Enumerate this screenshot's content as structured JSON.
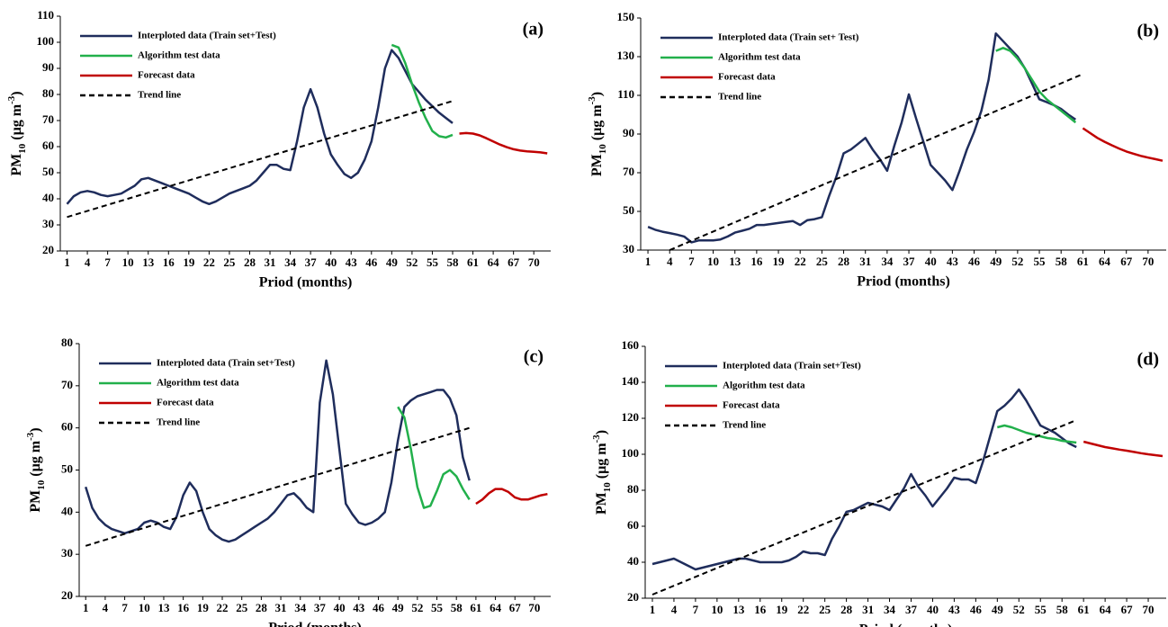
{
  "chart_data": [
    {
      "type": "line",
      "panel_label": "(a)",
      "ylabel": [
        "PM",
        "10",
        " (µg m",
        "-3",
        ")"
      ],
      "xlabel": "Priod (months)",
      "xlim": [
        0,
        72.5
      ],
      "ylim": [
        20,
        110
      ],
      "xticks": [
        1,
        4,
        7,
        10,
        13,
        16,
        19,
        22,
        25,
        28,
        31,
        34,
        37,
        40,
        43,
        46,
        49,
        52,
        55,
        58,
        61,
        64,
        67,
        70
      ],
      "yticks": [
        20,
        30,
        40,
        50,
        60,
        70,
        80,
        90,
        100,
        110
      ],
      "series": [
        {
          "name": "Interploted data (Train set+Test)",
          "color": "#1f2d5c",
          "style": "solid",
          "x": [
            1,
            2,
            3,
            4,
            5,
            6,
            7,
            8,
            9,
            10,
            11,
            12,
            13,
            14,
            15,
            16,
            17,
            18,
            19,
            20,
            21,
            22,
            23,
            24,
            25,
            26,
            27,
            28,
            29,
            30,
            31,
            32,
            33,
            34,
            35,
            36,
            37,
            38,
            39,
            40,
            41,
            42,
            43,
            44,
            45,
            46,
            47,
            48,
            49,
            50,
            51,
            52,
            53,
            54,
            55,
            56,
            57,
            58
          ],
          "values": [
            38,
            41,
            42.5,
            43,
            42.5,
            41.5,
            41,
            41.5,
            42,
            43.5,
            45,
            47.5,
            48,
            47,
            46,
            45,
            44,
            43,
            42,
            40.5,
            39,
            38,
            39,
            40.5,
            42,
            43,
            44,
            45,
            47,
            50,
            53,
            53,
            51.5,
            51,
            62,
            75,
            82,
            75,
            65,
            57,
            53,
            49.5,
            48,
            50,
            55,
            62,
            75,
            90,
            97,
            94,
            89,
            84,
            81,
            78,
            75.5,
            73,
            71,
            69
          ]
        },
        {
          "name": "Algorithm test data",
          "color": "#22b04b",
          "style": "solid",
          "x": [
            49,
            50,
            51,
            52,
            53,
            54,
            55,
            56,
            57,
            58
          ],
          "values": [
            99,
            98,
            92,
            84,
            77,
            71,
            66,
            64,
            63.5,
            64.5
          ]
        },
        {
          "name": "Forecast data",
          "color": "#c00000",
          "style": "solid",
          "x": [
            59,
            60,
            61,
            62,
            63,
            64,
            65,
            66,
            67,
            68,
            69,
            70,
            71,
            72
          ],
          "values": [
            65,
            65.2,
            65,
            64.3,
            63.2,
            62,
            60.8,
            59.8,
            59,
            58.5,
            58.2,
            58,
            57.8,
            57.4
          ]
        },
        {
          "name": "Trend line",
          "color": "#000000",
          "style": "dashed",
          "x": [
            1,
            58
          ],
          "values": [
            33,
            77.5
          ]
        }
      ]
    },
    {
      "type": "line",
      "panel_label": "(b)",
      "ylabel": [
        "PM",
        "10",
        " (µg m",
        "-3",
        ")"
      ],
      "xlabel": "Priod (months)",
      "xlim": [
        0,
        72.5
      ],
      "ylim": [
        30,
        150
      ],
      "xticks": [
        1,
        4,
        7,
        10,
        13,
        16,
        19,
        22,
        25,
        28,
        31,
        34,
        37,
        40,
        43,
        46,
        49,
        52,
        55,
        58,
        61,
        64,
        67,
        70
      ],
      "yticks": [
        30,
        50,
        70,
        90,
        110,
        130,
        150
      ],
      "series": [
        {
          "name": "Interploted data (Train set+ Test)",
          "color": "#1f2d5c",
          "style": "solid",
          "x": [
            1,
            2,
            3,
            4,
            5,
            6,
            7,
            8,
            9,
            10,
            11,
            12,
            13,
            14,
            15,
            16,
            17,
            18,
            19,
            20,
            21,
            22,
            23,
            24,
            25,
            26,
            27,
            28,
            29,
            30,
            31,
            32,
            33,
            34,
            35,
            36,
            37,
            38,
            39,
            40,
            41,
            42,
            43,
            44,
            45,
            46,
            47,
            48,
            49,
            50,
            51,
            52,
            53,
            54,
            55,
            56,
            57,
            58,
            59,
            60
          ],
          "values": [
            42,
            40.5,
            39.5,
            38.8,
            38,
            37,
            34,
            35,
            35,
            35,
            35.5,
            37,
            39,
            40,
            41,
            43,
            43,
            43.5,
            44,
            44.5,
            45,
            43,
            45.5,
            46,
            47,
            58,
            68,
            80,
            82,
            85,
            88,
            82,
            77,
            71,
            84,
            96,
            110.5,
            98,
            86,
            74,
            70,
            66,
            61,
            71,
            82,
            91,
            102,
            118,
            142,
            138,
            134,
            130,
            124,
            116,
            108,
            106.5,
            105,
            103,
            100,
            97.5
          ]
        },
        {
          "name": "Algorithm test data",
          "color": "#22b04b",
          "style": "solid",
          "x": [
            49,
            50,
            51,
            52,
            53,
            54,
            55,
            56,
            57,
            58,
            59,
            60
          ],
          "values": [
            133,
            134.5,
            133,
            129,
            124,
            118,
            112,
            108,
            105,
            102,
            99,
            96
          ]
        },
        {
          "name": "Forecast data",
          "color": "#c00000",
          "style": "solid",
          "x": [
            61,
            62,
            63,
            64,
            65,
            66,
            67,
            68,
            69,
            70,
            71,
            72
          ],
          "values": [
            93,
            90.5,
            88,
            86,
            84.2,
            82.5,
            81,
            79.8,
            78.7,
            77.8,
            77,
            76.2
          ]
        },
        {
          "name": "Trend line",
          "color": "#000000",
          "style": "dashed",
          "x": [
            4,
            61
          ],
          "values": [
            30,
            121
          ]
        }
      ]
    },
    {
      "type": "line",
      "panel_label": "(c)",
      "ylabel": [
        "PM",
        "10",
        " (µg m",
        "-3",
        ")"
      ],
      "xlabel": "Priod (months)",
      "xlim": [
        0,
        72.5
      ],
      "ylim": [
        20,
        80
      ],
      "xticks": [
        1,
        4,
        7,
        10,
        13,
        16,
        19,
        22,
        25,
        28,
        31,
        34,
        37,
        40,
        43,
        46,
        49,
        52,
        55,
        58,
        61,
        64,
        67,
        70
      ],
      "yticks": [
        20,
        30,
        40,
        50,
        60,
        70,
        80
      ],
      "series": [
        {
          "name": "Interploted data (Train set+Test)",
          "color": "#1f2d5c",
          "style": "solid",
          "x": [
            1,
            2,
            3,
            4,
            5,
            6,
            7,
            8,
            9,
            10,
            11,
            12,
            13,
            14,
            15,
            16,
            17,
            18,
            19,
            20,
            21,
            22,
            23,
            24,
            25,
            26,
            27,
            28,
            29,
            30,
            31,
            32,
            33,
            34,
            35,
            36,
            37,
            38,
            39,
            40,
            41,
            42,
            43,
            44,
            45,
            46,
            47,
            48,
            49,
            50,
            51,
            52,
            53,
            54,
            55,
            56,
            57,
            58,
            59,
            60
          ],
          "values": [
            46,
            41,
            38.5,
            37,
            36,
            35.5,
            35,
            35.5,
            36,
            37.5,
            38,
            37.5,
            36.5,
            36,
            39,
            44,
            47,
            45,
            40,
            36,
            34.5,
            33.5,
            33,
            33.5,
            34.5,
            35.5,
            36.5,
            37.5,
            38.5,
            40,
            42,
            44,
            44.5,
            43,
            41,
            40,
            66,
            76,
            68,
            55,
            42,
            39.5,
            37.5,
            37,
            37.5,
            38.5,
            40,
            47,
            57,
            65,
            66.5,
            67.5,
            68,
            68.5,
            69,
            69,
            67,
            63,
            53,
            47.5
          ]
        },
        {
          "name": "Algorithm test data",
          "color": "#22b04b",
          "style": "solid",
          "x": [
            49,
            50,
            51,
            52,
            53,
            54,
            55,
            56,
            57,
            58,
            59,
            60
          ],
          "values": [
            65,
            62.5,
            55,
            46,
            41,
            41.5,
            45,
            49,
            50,
            48.5,
            45.5,
            43
          ]
        },
        {
          "name": "Forecast data",
          "color": "#c00000",
          "style": "solid",
          "x": [
            61,
            62,
            63,
            64,
            65,
            66,
            67,
            68,
            69,
            70,
            71,
            72
          ],
          "values": [
            42,
            43,
            44.5,
            45.5,
            45.5,
            44.8,
            43.5,
            43,
            43,
            43.5,
            44,
            44.3
          ]
        },
        {
          "name": "Trend line",
          "color": "#000000",
          "style": "dashed",
          "x": [
            1,
            60
          ],
          "values": [
            32,
            60
          ]
        }
      ]
    },
    {
      "type": "line",
      "panel_label": "(d)",
      "ylabel": [
        "PM",
        "10",
        " (µg m",
        "-3",
        ")"
      ],
      "xlabel": "Priod (months)",
      "xlim": [
        0,
        72.5
      ],
      "ylim": [
        20,
        160
      ],
      "xticks": [
        1,
        4,
        7,
        10,
        13,
        16,
        19,
        22,
        25,
        28,
        31,
        34,
        37,
        40,
        43,
        46,
        49,
        52,
        55,
        58,
        61,
        64,
        67,
        70
      ],
      "yticks": [
        20,
        40,
        60,
        80,
        100,
        120,
        140,
        160
      ],
      "series": [
        {
          "name": "Interploted data (Train set+Test)",
          "color": "#1f2d5c",
          "style": "solid",
          "x": [
            1,
            2,
            3,
            4,
            5,
            6,
            7,
            8,
            9,
            10,
            11,
            12,
            13,
            14,
            15,
            16,
            17,
            18,
            19,
            20,
            21,
            22,
            23,
            24,
            25,
            26,
            27,
            28,
            29,
            30,
            31,
            32,
            33,
            34,
            35,
            36,
            37,
            38,
            39,
            40,
            41,
            42,
            43,
            44,
            45,
            46,
            47,
            48,
            49,
            50,
            51,
            52,
            53,
            54,
            55,
            56,
            57,
            58,
            59,
            60
          ],
          "values": [
            39,
            40,
            41,
            42,
            40,
            38,
            36,
            37,
            38,
            39,
            40,
            41,
            42,
            42,
            41,
            40,
            40,
            40,
            40,
            41,
            43,
            46,
            45,
            45,
            44,
            53,
            60,
            68,
            69,
            71,
            73,
            72,
            71,
            69,
            75,
            81,
            89,
            82,
            77,
            71,
            76,
            81,
            87,
            86,
            86,
            84,
            96,
            110,
            124,
            127,
            131,
            136,
            130,
            123,
            116,
            114,
            112,
            109,
            106,
            104
          ]
        },
        {
          "name": "Algorithm test data",
          "color": "#22b04b",
          "style": "solid",
          "x": [
            49,
            50,
            51,
            52,
            53,
            54,
            55,
            56,
            57,
            58,
            59,
            60
          ],
          "values": [
            115,
            116,
            115,
            113.5,
            112,
            111,
            110,
            109,
            108.5,
            107.5,
            107,
            106.5
          ]
        },
        {
          "name": "Forecast data",
          "color": "#c00000",
          "style": "solid",
          "x": [
            61,
            62,
            63,
            64,
            65,
            66,
            67,
            68,
            69,
            70,
            71,
            72
          ],
          "values": [
            107,
            106,
            105,
            104,
            103.3,
            102.6,
            102,
            101.3,
            100.6,
            100,
            99.5,
            99
          ]
        },
        {
          "name": "Trend line",
          "color": "#000000",
          "style": "dashed",
          "x": [
            1,
            60
          ],
          "values": [
            22,
            119
          ]
        }
      ]
    }
  ]
}
